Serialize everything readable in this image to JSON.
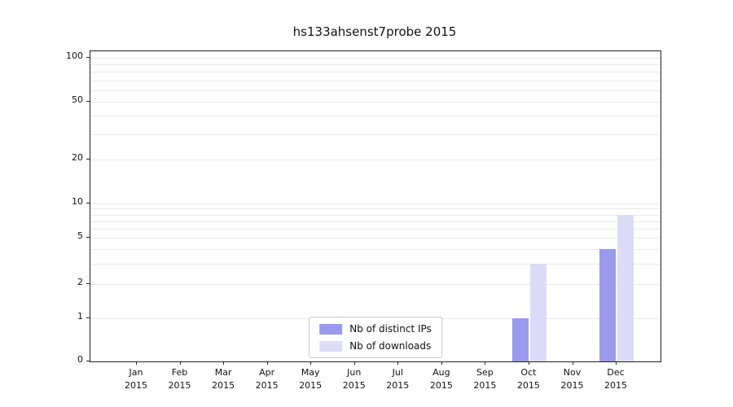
{
  "chart_data": {
    "type": "bar",
    "title": "hs133ahsenst7probe 2015",
    "categories": [
      "Jan",
      "Feb",
      "Mar",
      "Apr",
      "May",
      "Jun",
      "Jul",
      "Aug",
      "Sep",
      "Oct",
      "Nov",
      "Dec"
    ],
    "year": "2015",
    "series": [
      {
        "name": "Nb of distinct IPs",
        "color": "#9999ee",
        "values": [
          0,
          0,
          0,
          0,
          0,
          0,
          0,
          0,
          0,
          1,
          0,
          4
        ]
      },
      {
        "name": "Nb of downloads",
        "color": "#dcdcf8",
        "values": [
          0,
          0,
          0,
          0,
          0,
          0,
          0,
          0,
          0,
          3,
          0,
          8
        ]
      }
    ],
    "xlabel": "",
    "ylabel": "",
    "y_scale": "symlog",
    "y_ticks": [
      0,
      1,
      2,
      5,
      10,
      20,
      50,
      100
    ],
    "ylim": [
      0,
      100
    ],
    "grid": "horizontal-log-minor",
    "legend_position": "lower center"
  }
}
